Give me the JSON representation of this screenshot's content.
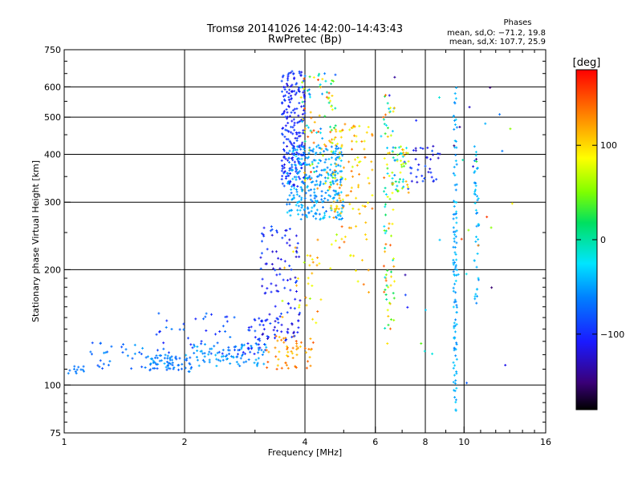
{
  "chart_data": {
    "type": "scatter",
    "title_line1": "Tromsø 20141026 14:42:00–14:43:43",
    "title_line2": "RwPretec (Bp)",
    "phases_heading": "Phases",
    "phases_o": "mean, sd,O: −71.2, 19.8",
    "phases_x": "mean, sd,X: 107.7, 25.9",
    "xlabel": "Frequency [MHz]",
    "ylabel": "Stationary phase Virtual Height [km]",
    "x_scale": "log",
    "y_scale": "log",
    "xlim": [
      1,
      16
    ],
    "ylim": [
      75,
      750
    ],
    "x_ticks": [
      {
        "value": 1,
        "label": "1"
      },
      {
        "value": 2,
        "label": "2"
      },
      {
        "value": 4,
        "label": "4"
      },
      {
        "value": 6,
        "label": "6"
      },
      {
        "value": 8,
        "label": "8"
      },
      {
        "value": 10,
        "label": "10"
      },
      {
        "value": 16,
        "label": "16"
      }
    ],
    "y_ticks": [
      {
        "value": 75,
        "label": "75"
      },
      {
        "value": 100,
        "label": "100"
      },
      {
        "value": 200,
        "label": "200"
      },
      {
        "value": 300,
        "label": "300"
      },
      {
        "value": 400,
        "label": "400"
      },
      {
        "value": 500,
        "label": "500"
      },
      {
        "value": 600,
        "label": "600"
      },
      {
        "value": 750,
        "label": "750"
      }
    ],
    "colorbar": {
      "label": "[deg]",
      "range": [
        -180,
        180
      ],
      "ticks": [
        {
          "value": 100,
          "label": "100"
        },
        {
          "value": 0,
          "label": "0"
        },
        {
          "value": -100,
          "label": "−100"
        }
      ]
    },
    "grid": true,
    "clusters": [
      {
        "x": [
          1.02,
          1.12
        ],
        "y": [
          107,
          112
        ],
        "phase": [
          -70,
          -60
        ],
        "n": 12
      },
      {
        "x": [
          1.15,
          1.6
        ],
        "y": [
          110,
          130
        ],
        "phase": [
          -90,
          -50
        ],
        "n": 30
      },
      {
        "x": [
          1.6,
          2.1
        ],
        "y": [
          108,
          120
        ],
        "phase": [
          -80,
          -40
        ],
        "n": 70
      },
      {
        "x": [
          2.1,
          3.2
        ],
        "y": [
          112,
          128
        ],
        "phase": [
          -70,
          -40
        ],
        "n": 80
      },
      {
        "x": [
          1.7,
          2.9
        ],
        "y": [
          120,
          155
        ],
        "phase": [
          -110,
          -60
        ],
        "n": 45
      },
      {
        "x": [
          2.8,
          3.3
        ],
        "y": [
          120,
          150
        ],
        "phase": [
          -110,
          -70
        ],
        "n": 35
      },
      {
        "x": [
          3.2,
          4.2
        ],
        "y": [
          110,
          135
        ],
        "phase": [
          100,
          150
        ],
        "n": 55
      },
      {
        "x": [
          3.1,
          3.9
        ],
        "y": [
          130,
          260
        ],
        "phase": [
          -130,
          -80
        ],
        "n": 110
      },
      {
        "x": [
          3.5,
          4.4
        ],
        "y": [
          140,
          240
        ],
        "phase": [
          60,
          140
        ],
        "n": 30
      },
      {
        "x": [
          3.5,
          4.0
        ],
        "y": [
          330,
          660
        ],
        "phase": [
          -120,
          -80
        ],
        "n": 230
      },
      {
        "x": [
          3.9,
          4.8
        ],
        "y": [
          320,
          650
        ],
        "phase": [
          -80,
          160
        ],
        "n": 110
      },
      {
        "x": [
          3.6,
          5.0
        ],
        "y": [
          270,
          420
        ],
        "phase": [
          -70,
          -30
        ],
        "n": 280
      },
      {
        "x": [
          4.6,
          5.9
        ],
        "y": [
          280,
          480
        ],
        "phase": [
          70,
          140
        ],
        "n": 90
      },
      {
        "x": [
          4.6,
          5.8
        ],
        "y": [
          170,
          300
        ],
        "phase": [
          60,
          150
        ],
        "n": 30
      },
      {
        "x": [
          6.3,
          6.7
        ],
        "y": [
          140,
          590
        ],
        "phase": [
          -40,
          150
        ],
        "n": 80
      },
      {
        "x": [
          6.6,
          7.3
        ],
        "y": [
          320,
          420
        ],
        "phase": [
          -90,
          130
        ],
        "n": 55
      },
      {
        "x": [
          7.3,
          8.8
        ],
        "y": [
          330,
          420
        ],
        "phase": [
          -130,
          -80
        ],
        "n": 35
      },
      {
        "x": [
          9.4,
          9.6
        ],
        "y": [
          85,
          600
        ],
        "phase": [
          -60,
          -30
        ],
        "n": 110
      },
      {
        "x": [
          10.6,
          10.9
        ],
        "y": [
          160,
          420
        ],
        "phase": [
          -60,
          -30
        ],
        "n": 45
      },
      {
        "x": [
          6.0,
          13.5
        ],
        "y": [
          100,
          640
        ],
        "phase": [
          -160,
          160
        ],
        "n": 40
      }
    ]
  }
}
